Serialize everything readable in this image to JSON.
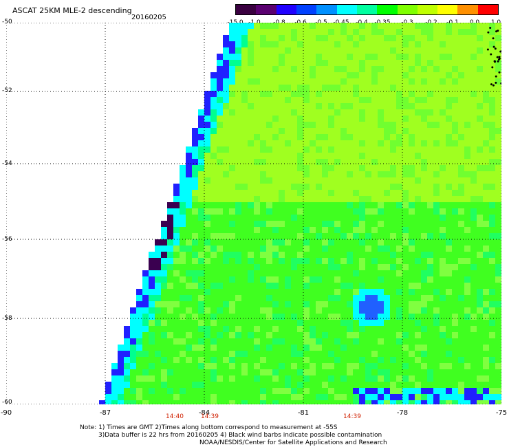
{
  "header": {
    "title": "ASCAT 25KM MLE-2 descending",
    "date": "20160205"
  },
  "legend": {
    "colors": [
      "#3a0040",
      "#5a0070",
      "#2000ff",
      "#0040ff",
      "#0090ff",
      "#00ffff",
      "#00ffa0",
      "#00ff00",
      "#80ff00",
      "#c0ff00",
      "#ffff00",
      "#ff9000",
      "#ff0000"
    ],
    "tick_labels": [
      "-15.0",
      "-1.0",
      "-0.8",
      "-0.6",
      "-0.5",
      "-0.45",
      "-0.4",
      "-0.35",
      "-0.3",
      "-0.2",
      "-0.1",
      "0.0",
      "1.0"
    ]
  },
  "map": {
    "lat_labels": [
      "-50",
      "-52",
      "-54",
      "-56",
      "-58",
      "-60"
    ],
    "lon_labels": [
      "-90",
      "-87",
      "-84",
      "-81",
      "-78",
      "-75"
    ],
    "time_labels": [
      "14:40",
      "14:39",
      "14:39"
    ]
  },
  "footer": {
    "note_line1": "Note: 1) Times are GMT 2)Times along bottom correspond to measurement at -55S",
    "note_line2": "3)Data buffer is 22 hrs from 20160205 4) Black wind barbs indicate possible contamination",
    "note_line3": "NOAA/NESDIS/Center for Satellite Applications and Research"
  },
  "colors": {
    "main_field": "#40ff20",
    "north_field": "#a0ff20",
    "edge_blue": "#2020ff",
    "edge_cyan": "#00ffff",
    "edge_dark": "#3a0050"
  }
}
